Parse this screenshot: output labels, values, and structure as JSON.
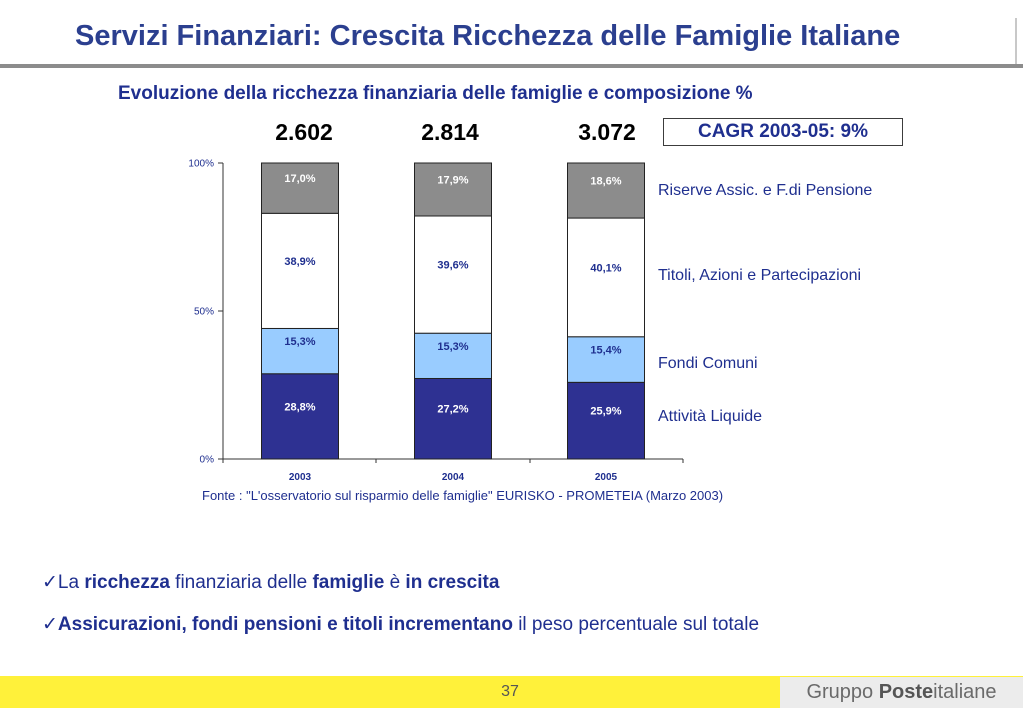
{
  "header": {
    "title": "Servizi Finanziari: Crescita Ricchezza delle Famiglie Italiane",
    "subtitle": "Evoluzione della ricchezza finanziaria delle famiglie e composizione %"
  },
  "totals": [
    "2.602",
    "2.814",
    "3.072"
  ],
  "cagr_label": "CAGR 2003-05: 9%",
  "chart_data": {
    "type": "bar",
    "stacked": true,
    "categories": [
      "2003",
      "2004",
      "2005"
    ],
    "series": [
      {
        "name": "Attività Liquide",
        "values": [
          28.8,
          27.2,
          25.9
        ],
        "labels": [
          "28,8%",
          "27,2%",
          "25,9%"
        ],
        "color": "#2e3192",
        "text_color": "#ffffff"
      },
      {
        "name": "Fondi Comuni",
        "values": [
          15.3,
          15.3,
          15.4
        ],
        "labels": [
          "15,3%",
          "15,3%",
          "15,4%"
        ],
        "color": "#99ccff",
        "text_color": "#1f2f8f"
      },
      {
        "name": "Titoli, Azioni e Partecipazioni",
        "values": [
          38.9,
          39.6,
          40.1
        ],
        "labels": [
          "38,9%",
          "39,6%",
          "40,1%"
        ],
        "color": "#ffffff",
        "text_color": "#1f2f8f"
      },
      {
        "name": "Riserve Assic. e F.di Pensione",
        "values": [
          17.0,
          17.9,
          18.6
        ],
        "labels": [
          "17,0%",
          "17,9%",
          "18,6%"
        ],
        "color": "#8c8c8c",
        "text_color": "#ffffff"
      }
    ],
    "y_ticks": [
      "0%",
      "50%",
      "100%"
    ],
    "ylim": [
      0,
      100
    ],
    "legend_position": "right"
  },
  "source": "Fonte : \"L'osservatorio sul risparmio delle famiglie\" EURISKO - PROMETEIA  (Marzo 2003)",
  "bullets": [
    {
      "check": "✓",
      "p1": "La ",
      "b1": "ricchezza",
      "p2": " finanziaria delle ",
      "b2": "famiglie",
      "p3": " è ",
      "b3": "in crescita"
    },
    {
      "check": "✓",
      "b1": "Assicurazioni, fondi pensioni e titoli incrementano",
      "p1": " il peso percentuale sul totale"
    }
  ],
  "footer": {
    "page_number": "37",
    "logo_part1": "Gruppo ",
    "logo_part2": "Poste",
    "logo_part3": "italiane"
  }
}
